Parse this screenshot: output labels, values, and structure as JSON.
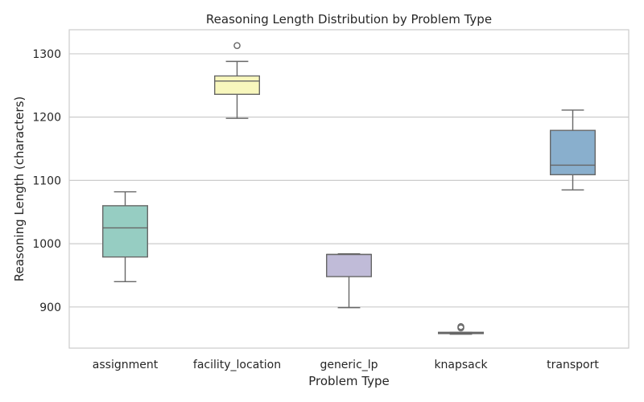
{
  "chart_data": {
    "type": "box",
    "title": "Reasoning Length Distribution by Problem Type",
    "xlabel": "Problem Type",
    "ylabel": "Reasoning Length (characters)",
    "ylim": [
      835,
      1338
    ],
    "yticks": [
      900,
      1000,
      1100,
      1200,
      1300
    ],
    "grid": "horizontal",
    "categories": [
      "assignment",
      "facility_location",
      "generic_lp",
      "knapsack",
      "transport"
    ],
    "boxes": [
      {
        "category": "assignment",
        "whisker_low": 940,
        "q1": 979,
        "median": 1025,
        "q3": 1060,
        "whisker_high": 1082,
        "outliers": [],
        "color": "#96cdc2"
      },
      {
        "category": "facility_location",
        "whisker_low": 1198,
        "q1": 1236,
        "median": 1257,
        "q3": 1265,
        "whisker_high": 1288,
        "outliers": [
          1313
        ],
        "color": "#f8f7bd"
      },
      {
        "category": "generic_lp",
        "whisker_low": 899,
        "q1": 948,
        "median": 983,
        "q3": 983,
        "whisker_high": 984,
        "outliers": [],
        "color": "#c0bbd8"
      },
      {
        "category": "knapsack",
        "whisker_low": 857,
        "q1": 858,
        "median": 859,
        "q3": 860,
        "whisker_high": 860,
        "outliers": [
          867,
          869
        ],
        "color": "#e98b7e"
      },
      {
        "category": "transport",
        "whisker_low": 1085,
        "q1": 1109,
        "median": 1124,
        "q3": 1179,
        "whisker_high": 1211,
        "outliers": [],
        "color": "#89afcd"
      }
    ]
  }
}
